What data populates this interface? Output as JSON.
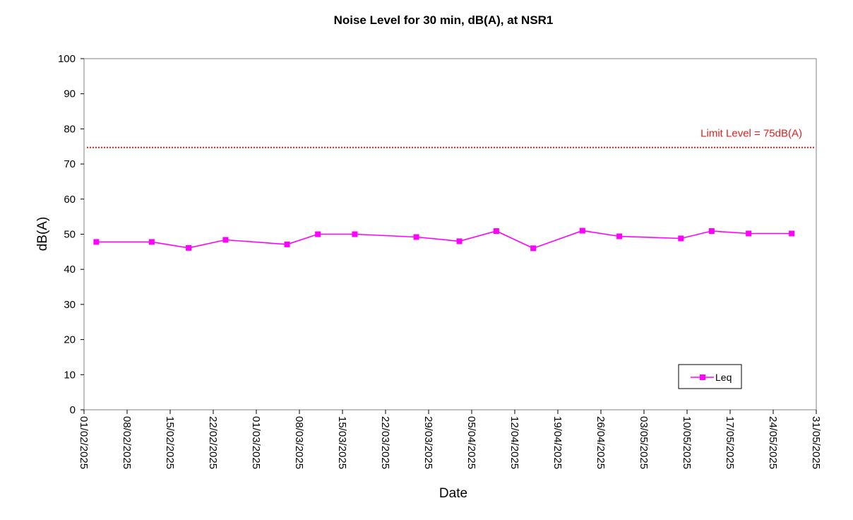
{
  "chart_data": {
    "type": "line",
    "title": "Noise Level for 30 min, dB(A), at NSR1",
    "xlabel": "Date",
    "ylabel": "dB(A)",
    "xlim": [
      "01/02/2025",
      "31/05/2025"
    ],
    "ylim": [
      0,
      100
    ],
    "y_ticks": [
      0,
      10,
      20,
      30,
      40,
      50,
      60,
      70,
      80,
      90,
      100
    ],
    "x_ticks": [
      "01/02/2025",
      "08/02/2025",
      "15/02/2025",
      "22/02/2025",
      "01/03/2025",
      "08/03/2025",
      "15/03/2025",
      "22/03/2025",
      "29/03/2025",
      "05/04/2025",
      "12/04/2025",
      "19/04/2025",
      "26/04/2025",
      "03/05/2025",
      "10/05/2025",
      "17/05/2025",
      "24/05/2025",
      "31/05/2025"
    ],
    "grid": false,
    "legend": {
      "position": "bottom-right"
    },
    "series": [
      {
        "name": "Leq",
        "color": "#ff00ff",
        "marker": "square",
        "points": [
          {
            "x": "03/02/2025",
            "y": 47.8
          },
          {
            "x": "12/02/2025",
            "y": 47.8
          },
          {
            "x": "18/02/2025",
            "y": 46.1
          },
          {
            "x": "24/02/2025",
            "y": 48.4
          },
          {
            "x": "06/03/2025",
            "y": 47.1
          },
          {
            "x": "11/03/2025",
            "y": 50.0
          },
          {
            "x": "17/03/2025",
            "y": 50.0
          },
          {
            "x": "27/03/2025",
            "y": 49.2
          },
          {
            "x": "03/04/2025",
            "y": 48.0
          },
          {
            "x": "09/04/2025",
            "y": 50.9
          },
          {
            "x": "15/04/2025",
            "y": 46.0
          },
          {
            "x": "23/04/2025",
            "y": 51.0
          },
          {
            "x": "29/04/2025",
            "y": 49.4
          },
          {
            "x": "09/05/2025",
            "y": 48.8
          },
          {
            "x": "14/05/2025",
            "y": 50.9
          },
          {
            "x": "20/05/2025",
            "y": 50.2
          },
          {
            "x": "27/05/2025",
            "y": 50.2
          }
        ]
      }
    ],
    "reference_line": {
      "label": "Limit Level = 75dB(A)",
      "y": 74.7,
      "color": "#e02020",
      "style": "dotted"
    }
  }
}
